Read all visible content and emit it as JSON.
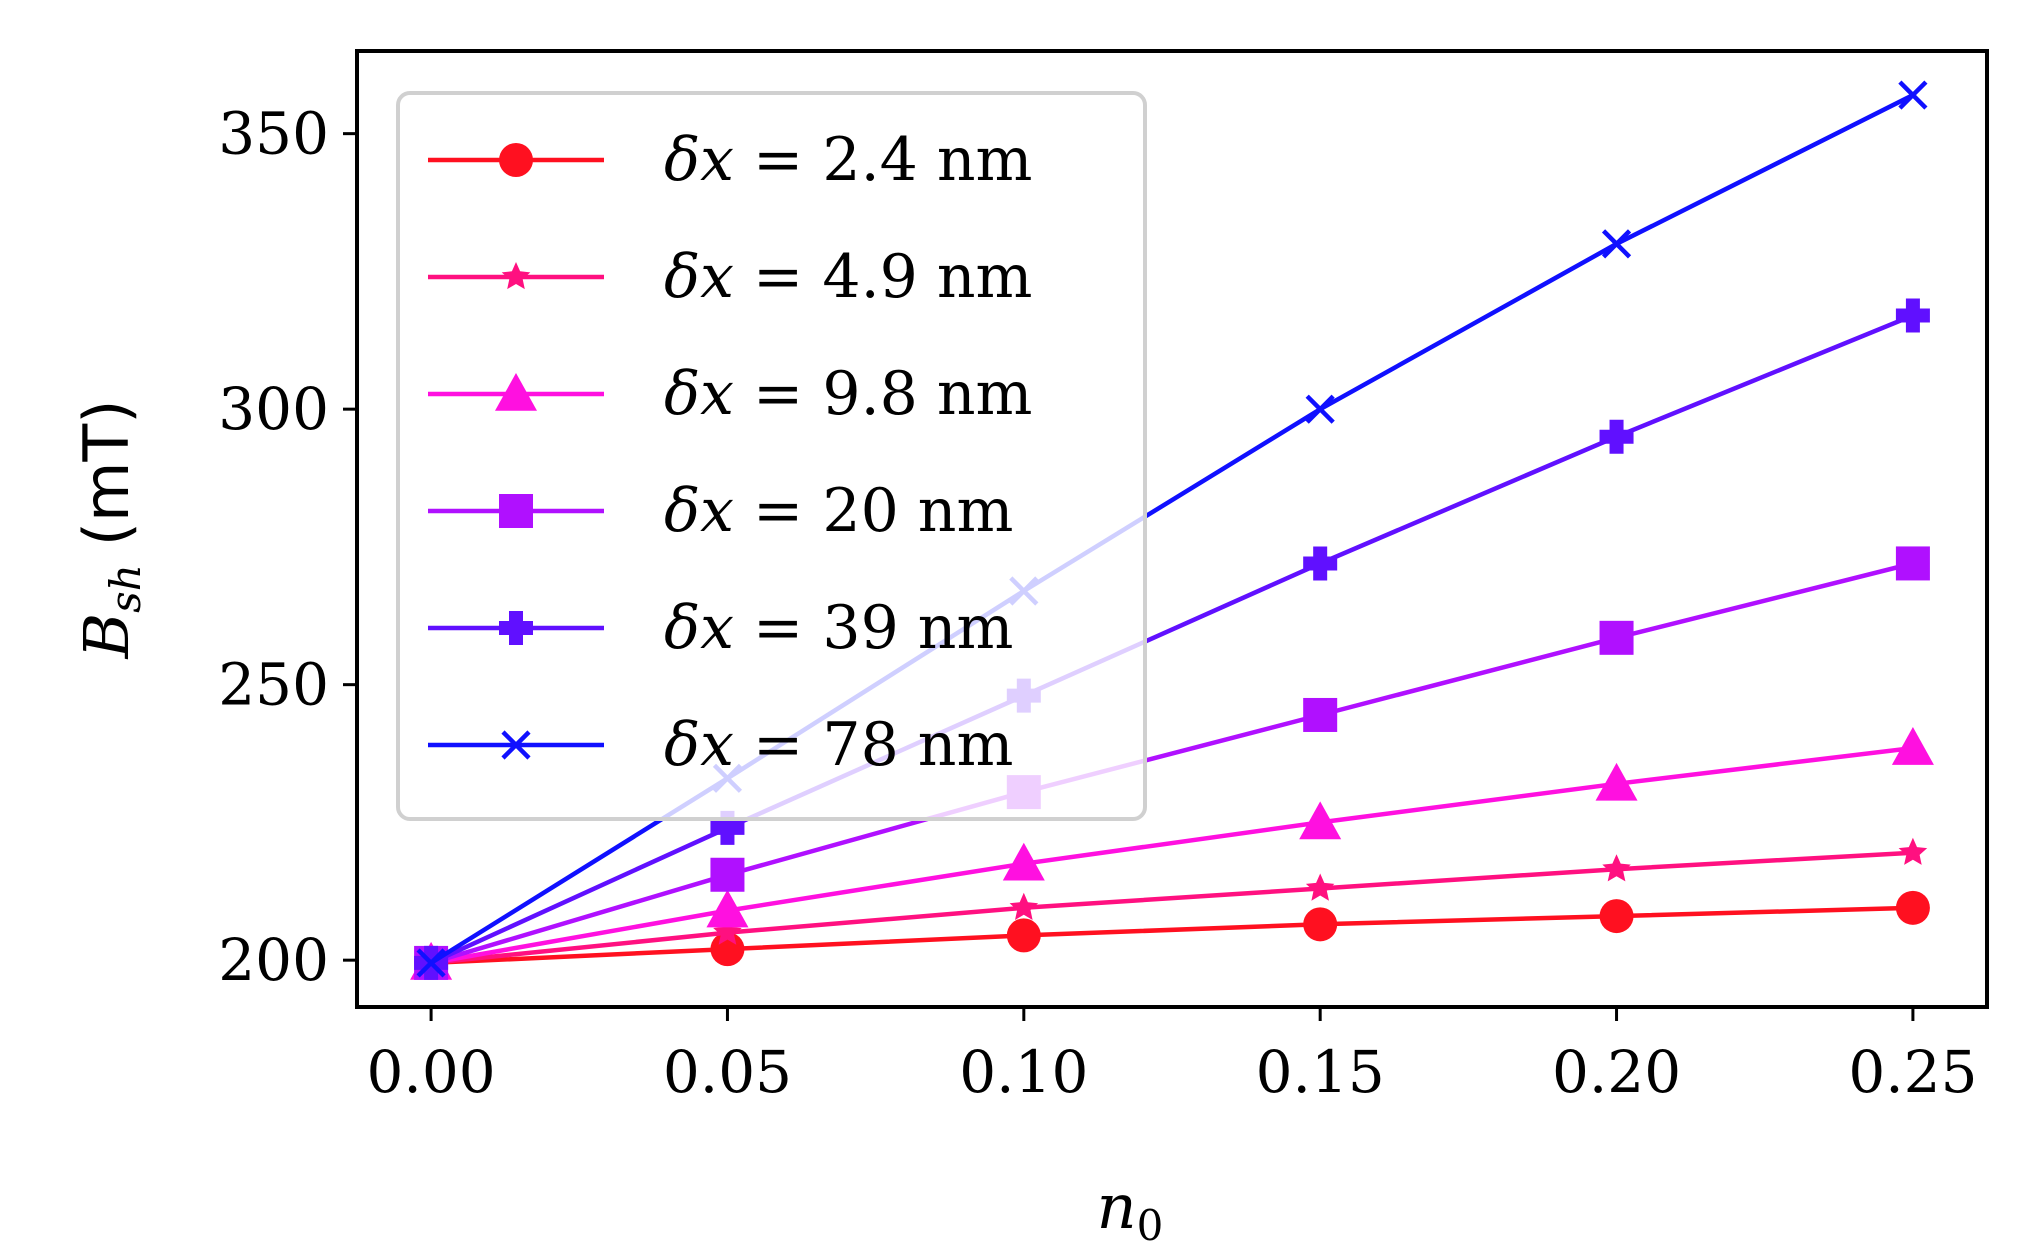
{
  "chart_data": {
    "type": "line",
    "title": "",
    "xlabel": "n",
    "xlabel_sub": "0",
    "ylabel": "B",
    "ylabel_sub": "sh",
    "ylabel_unit": "(mT)",
    "xlim": [
      -0.0125,
      0.2625
    ],
    "ylim": [
      191.5,
      365
    ],
    "xticks": [
      0.0,
      0.05,
      0.1,
      0.15,
      0.2,
      0.25
    ],
    "xtick_labels": [
      "0.00",
      "0.05",
      "0.10",
      "0.15",
      "0.20",
      "0.25"
    ],
    "yticks": [
      200,
      250,
      300,
      350
    ],
    "ytick_labels": [
      "200",
      "250",
      "300",
      "350"
    ],
    "legend_position": "upper-left",
    "x": [
      0.0,
      0.05,
      0.1,
      0.15,
      0.2,
      0.25
    ],
    "series": [
      {
        "name": "δx = 2.4 nm",
        "prefix": "δx = ",
        "value": "2.4 nm",
        "marker": "circle",
        "color": "#ff1020",
        "values": [
          199.5,
          202.0,
          204.5,
          206.5,
          208.0,
          209.5
        ]
      },
      {
        "name": "δx = 4.9 nm",
        "prefix": "δx = ",
        "value": "4.9 nm",
        "marker": "star",
        "color": "#ff1080",
        "values": [
          199.5,
          205.0,
          209.5,
          213.0,
          216.5,
          219.5
        ]
      },
      {
        "name": "δx = 9.8 nm",
        "prefix": "δx = ",
        "value": "9.8 nm",
        "marker": "triangle",
        "color": "#ff10e0",
        "values": [
          199.5,
          209.0,
          217.5,
          225.0,
          232.0,
          238.5
        ]
      },
      {
        "name": "δx = 20 nm",
        "prefix": "δx = ",
        "value": "20 nm",
        "marker": "square",
        "color": "#b010ff",
        "values": [
          199.5,
          215.5,
          230.5,
          244.5,
          258.5,
          272.0
        ]
      },
      {
        "name": "δx = 39 nm",
        "prefix": "δx = ",
        "value": "39 nm",
        "marker": "plus",
        "color": "#6010ff",
        "values": [
          199.5,
          224.0,
          248.0,
          272.0,
          295.0,
          317.0
        ]
      },
      {
        "name": "δx = 78 nm",
        "prefix": "δx = ",
        "value": "78 nm",
        "marker": "x",
        "color": "#1010ff",
        "values": [
          199.5,
          233.0,
          267.0,
          300.0,
          330.0,
          357.0
        ]
      }
    ]
  }
}
